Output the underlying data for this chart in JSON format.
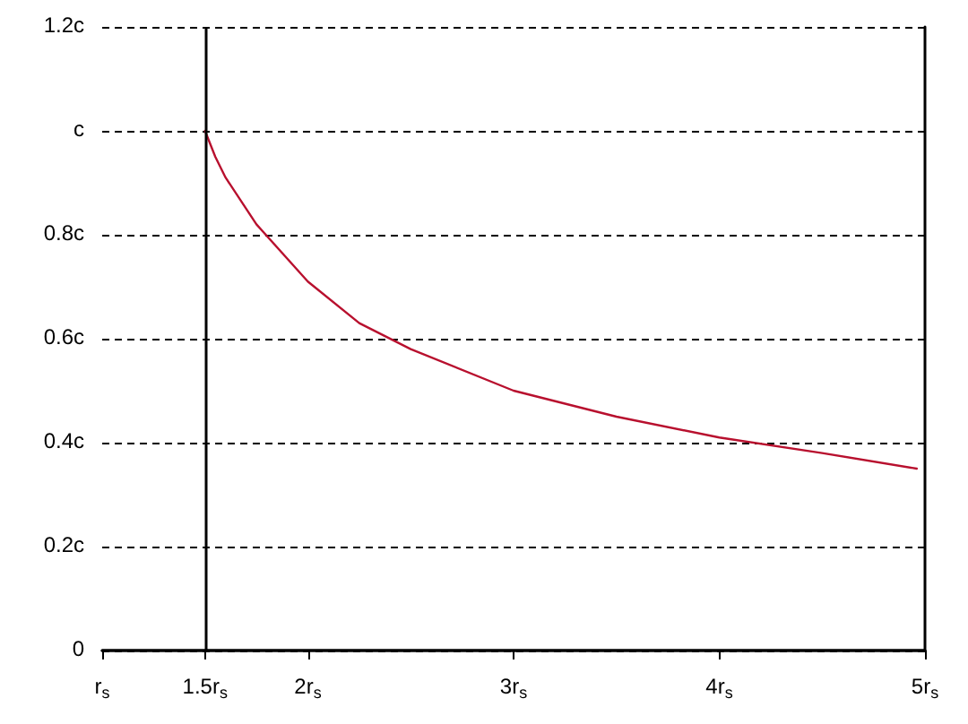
{
  "chart_data": {
    "type": "line",
    "x": [
      1.5,
      1.55,
      1.6,
      1.75,
      2.0,
      2.25,
      2.5,
      3.0,
      3.5,
      4.0,
      4.5,
      4.96
    ],
    "values": [
      1.0,
      0.95,
      0.91,
      0.82,
      0.71,
      0.63,
      0.58,
      0.5,
      0.45,
      0.41,
      0.38,
      0.35
    ],
    "color": "#b8102e",
    "xlim": [
      1,
      5
    ],
    "xticks": [
      {
        "value": 1,
        "label": "r$_{s}$"
      },
      {
        "value": 1.5,
        "label": "1.5r$_{s}$"
      },
      {
        "value": 2,
        "label": "2r$_{s}$"
      },
      {
        "value": 3,
        "label": "3r$_{s}$"
      },
      {
        "value": 4,
        "label": "4r$_{s}$"
      },
      {
        "value": 5,
        "label": "5r$_{s}$"
      }
    ],
    "ylim": [
      0,
      1.2
    ],
    "yticks": [
      0,
      {
        "value": 0.2,
        "label": "0.2c"
      },
      {
        "value": 0.4,
        "label": "0.4c"
      },
      {
        "value": 0.6,
        "label": "0.6c"
      },
      {
        "value": 0.8,
        "label": "0.8c"
      },
      {
        "value": 1,
        "label": "c"
      },
      {
        "value": 1.2,
        "label": "1.2c"
      }
    ],
    "grid": "y",
    "marker": "none",
    "line_style": "solid",
    "ref_lines": [
      {
        "axis": "x",
        "value": 1.5,
        "color": "#000000",
        "line_style": "solid"
      }
    ]
  }
}
